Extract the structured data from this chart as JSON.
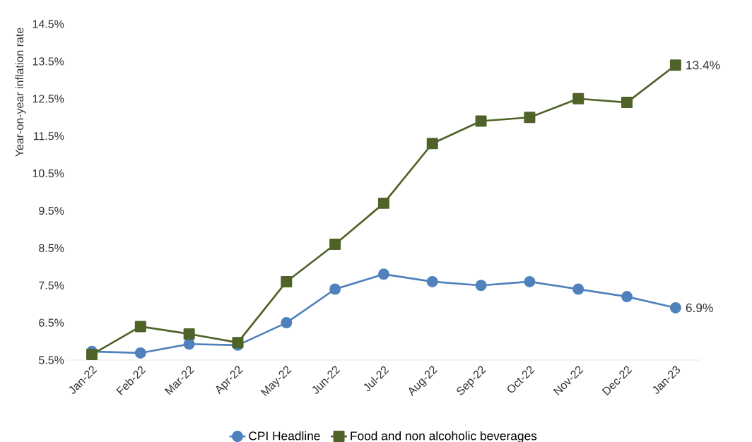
{
  "chart_data": {
    "type": "line",
    "ylabel": "Year-on-year inflation rate",
    "categories": [
      "Jan-22",
      "Feb-22",
      "Mar-22",
      "Apr-22",
      "May-22",
      "Jun-22",
      "Jul-22",
      "Aug-22",
      "Sep-22",
      "Oct-22",
      "Nov-22",
      "Dec-22",
      "Jan-23"
    ],
    "series": [
      {
        "name": "CPI Headline",
        "color": "#4f81bd",
        "marker": "circle",
        "values": [
          5.73,
          5.69,
          5.93,
          5.9,
          6.5,
          7.4,
          7.8,
          7.6,
          7.5,
          7.6,
          7.4,
          7.2,
          6.9
        ],
        "value_labels": [
          null,
          null,
          null,
          null,
          null,
          null,
          null,
          null,
          null,
          null,
          null,
          null,
          "6.9%"
        ]
      },
      {
        "name": "Food and non alcoholic beverages",
        "color": "#4f6228",
        "marker": "square",
        "values": [
          5.65,
          6.4,
          6.2,
          5.97,
          7.6,
          8.6,
          9.7,
          11.3,
          11.9,
          12.0,
          12.5,
          12.4,
          13.4
        ],
        "value_labels": [
          null,
          null,
          null,
          null,
          null,
          null,
          null,
          null,
          null,
          null,
          null,
          null,
          "13.4%"
        ]
      }
    ],
    "ylim": [
      5.5,
      14.5
    ],
    "yticks": [
      {
        "value": 5.5,
        "label": "5.5%"
      },
      {
        "value": 6.5,
        "label": "6.5%"
      },
      {
        "value": 7.5,
        "label": "7.5%"
      },
      {
        "value": 8.5,
        "label": "8.5%"
      },
      {
        "value": 9.5,
        "label": "9.5%"
      },
      {
        "value": 10.5,
        "label": "10.5%"
      },
      {
        "value": 11.5,
        "label": "11.5%"
      },
      {
        "value": 12.5,
        "label": "12.5%"
      },
      {
        "value": 13.5,
        "label": "13.5%"
      },
      {
        "value": 14.5,
        "label": "14.5%"
      }
    ],
    "grid": false,
    "legend": "bottom",
    "line_style": "solid"
  }
}
